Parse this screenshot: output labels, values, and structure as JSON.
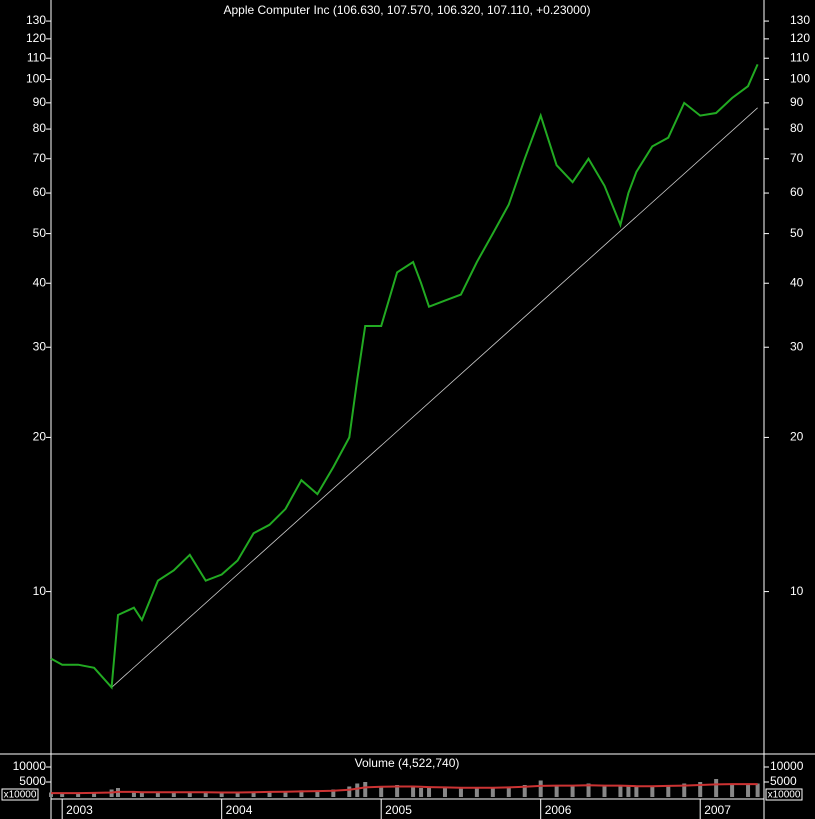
{
  "chart_data": [
    {
      "type": "line",
      "title": "Apple Computer Inc (106.630, 107.570, 106.320, 107.110, +0.23000)",
      "log_scale": true,
      "grid": false,
      "x": [
        2002.93,
        2003.0,
        2003.1,
        2003.2,
        2003.31,
        2003.35,
        2003.45,
        2003.5,
        2003.6,
        2003.7,
        2003.8,
        2003.9,
        2004.0,
        2004.1,
        2004.2,
        2004.3,
        2004.4,
        2004.5,
        2004.6,
        2004.7,
        2004.8,
        2004.85,
        2004.9,
        2005.0,
        2005.1,
        2005.2,
        2005.25,
        2005.3,
        2005.4,
        2005.5,
        2005.6,
        2005.7,
        2005.8,
        2005.9,
        2006.0,
        2006.1,
        2006.2,
        2006.3,
        2006.4,
        2006.5,
        2006.55,
        2006.6,
        2006.7,
        2006.8,
        2006.9,
        2007.0,
        2007.1,
        2007.2,
        2007.3,
        2007.36
      ],
      "series": [
        {
          "color": "#22aa22",
          "values": [
            7.4,
            7.2,
            7.2,
            7.1,
            6.5,
            9.0,
            9.3,
            8.8,
            10.5,
            11.0,
            11.8,
            10.5,
            10.8,
            11.5,
            13.0,
            13.5,
            14.5,
            16.5,
            15.5,
            17.5,
            20,
            26,
            33,
            33,
            42,
            44,
            40,
            36,
            37,
            38,
            44,
            50,
            57,
            70,
            85,
            68,
            63,
            70,
            62,
            52,
            60,
            66,
            74,
            77,
            90,
            85,
            86,
            92,
            97,
            107
          ]
        }
      ],
      "trendline": {
        "color": "#cccccc",
        "x": [
          2003.31,
          2007.36
        ],
        "values": [
          6.5,
          88
        ]
      },
      "xlim": [
        2002.93,
        2007.4
      ],
      "xticks": [
        {
          "value": 2003,
          "label": "2003"
        },
        {
          "value": 2004,
          "label": "2004"
        },
        {
          "value": 2005,
          "label": "2005"
        },
        {
          "value": 2006,
          "label": "2006"
        },
        {
          "value": 2007,
          "label": "2007"
        }
      ],
      "ylim": [
        4.84,
        141
      ],
      "yticks": [
        10,
        20,
        30,
        40,
        50,
        60,
        70,
        80,
        90,
        100,
        110,
        120,
        130
      ]
    },
    {
      "type": "bar",
      "title": "Volume (4,522,740)",
      "unit_label": "x10000",
      "x": [
        2002.93,
        2003.0,
        2003.1,
        2003.2,
        2003.31,
        2003.35,
        2003.45,
        2003.5,
        2003.6,
        2003.7,
        2003.8,
        2003.9,
        2004.0,
        2004.1,
        2004.2,
        2004.3,
        2004.4,
        2004.5,
        2004.6,
        2004.7,
        2004.8,
        2004.85,
        2004.9,
        2005.0,
        2005.1,
        2005.2,
        2005.25,
        2005.3,
        2005.4,
        2005.5,
        2005.6,
        2005.7,
        2005.8,
        2005.9,
        2006.0,
        2006.1,
        2006.2,
        2006.3,
        2006.4,
        2006.5,
        2006.55,
        2006.6,
        2006.7,
        2006.8,
        2006.9,
        2007.0,
        2007.1,
        2007.2,
        2007.3,
        2007.36
      ],
      "series": [
        {
          "color": "#888888",
          "values": [
            1500,
            1200,
            1300,
            1400,
            2500,
            3000,
            1800,
            1500,
            1600,
            1500,
            1700,
            1500,
            1400,
            1600,
            1800,
            1700,
            1900,
            2200,
            2000,
            2500,
            3500,
            4500,
            5000,
            3500,
            4000,
            3500,
            3000,
            3500,
            3000,
            2800,
            3200,
            3000,
            3500,
            4000,
            5500,
            4000,
            3800,
            4500,
            3500,
            4000,
            3500,
            3500,
            3800,
            4000,
            4500,
            5000,
            6000,
            4500,
            4000,
            4500
          ]
        },
        {
          "color": "#cc3333",
          "values": [
            1300,
            1300,
            1300,
            1350,
            1500,
            1700,
            1700,
            1600,
            1550,
            1550,
            1600,
            1550,
            1500,
            1500,
            1600,
            1700,
            1750,
            1850,
            1950,
            2100,
            2400,
            2800,
            3200,
            3400,
            3500,
            3500,
            3400,
            3300,
            3200,
            3100,
            3100,
            3100,
            3200,
            3400,
            3700,
            3800,
            3800,
            3900,
            3800,
            3800,
            3700,
            3600,
            3600,
            3700,
            3800,
            4000,
            4200,
            4300,
            4300,
            4300
          ]
        }
      ],
      "xlim": [
        2002.93,
        2007.4
      ],
      "ylim": [
        0,
        13333
      ],
      "yticks": [
        5000,
        10000
      ]
    }
  ]
}
